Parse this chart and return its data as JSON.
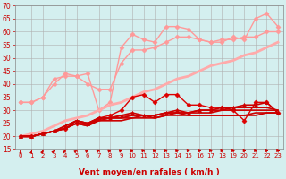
{
  "xlabel": "Vent moyen/en rafales ( km/h )",
  "bg_color": "#d4efef",
  "grid_color": "#b0b0b0",
  "xlim": [
    -0.5,
    23.5
  ],
  "ylim": [
    15,
    70
  ],
  "yticks": [
    15,
    20,
    25,
    30,
    35,
    40,
    45,
    50,
    55,
    60,
    65,
    70
  ],
  "xticks": [
    0,
    1,
    2,
    3,
    4,
    5,
    6,
    7,
    8,
    9,
    10,
    11,
    12,
    13,
    14,
    15,
    16,
    17,
    18,
    19,
    20,
    21,
    22,
    23
  ],
  "lines": [
    {
      "x": [
        0,
        1,
        2,
        3,
        4,
        5,
        6,
        7,
        8,
        9,
        10,
        11,
        12,
        13,
        14,
        15,
        16,
        17,
        18,
        19,
        20,
        21,
        22,
        23
      ],
      "y": [
        33,
        33,
        35,
        40,
        44,
        43,
        44,
        30,
        33,
        54,
        59,
        57,
        56,
        62,
        62,
        61,
        57,
        56,
        56,
        58,
        57,
        65,
        67,
        62
      ],
      "color": "#ff9999",
      "marker": "D",
      "ms": 2.5,
      "lw": 1.0
    },
    {
      "x": [
        0,
        1,
        2,
        3,
        4,
        5,
        6,
        7,
        8,
        9,
        10,
        11,
        12,
        13,
        14,
        15,
        16,
        17,
        18,
        19,
        20,
        21,
        22,
        23
      ],
      "y": [
        33,
        33,
        35,
        42,
        43,
        43,
        40,
        38,
        38,
        48,
        53,
        53,
        54,
        56,
        58,
        58,
        57,
        56,
        57,
        57,
        58,
        58,
        60,
        60
      ],
      "color": "#ff9999",
      "marker": "D",
      "ms": 2.5,
      "lw": 1.0
    },
    {
      "x": [
        0,
        1,
        2,
        3,
        4,
        5,
        6,
        7,
        8,
        9,
        10,
        11,
        12,
        13,
        14,
        15,
        16,
        17,
        18,
        19,
        20,
        21,
        22,
        23
      ],
      "y": [
        20,
        21,
        22,
        24,
        26,
        27,
        28,
        30,
        32,
        33,
        35,
        37,
        38,
        40,
        42,
        43,
        45,
        47,
        48,
        49,
        51,
        52,
        54,
        56
      ],
      "color": "#ffaaaa",
      "marker": null,
      "ms": 0,
      "lw": 2.0
    },
    {
      "x": [
        0,
        1,
        2,
        3,
        4,
        5,
        6,
        7,
        8,
        9,
        10,
        11,
        12,
        13,
        14,
        15,
        16,
        17,
        18,
        19,
        20,
        21,
        22,
        23
      ],
      "y": [
        20,
        20,
        21,
        22,
        23,
        25,
        25,
        27,
        28,
        30,
        35,
        36,
        33,
        36,
        36,
        32,
        32,
        31,
        31,
        30,
        26,
        33,
        33,
        29
      ],
      "color": "#dd0000",
      "marker": "D",
      "ms": 2.5,
      "lw": 1.0
    },
    {
      "x": [
        0,
        1,
        2,
        3,
        4,
        5,
        6,
        7,
        8,
        9,
        10,
        11,
        12,
        13,
        14,
        15,
        16,
        17,
        18,
        19,
        20,
        21,
        22,
        23
      ],
      "y": [
        20,
        20,
        21,
        22,
        23,
        25,
        24,
        27,
        27,
        27,
        27,
        28,
        27,
        28,
        29,
        28,
        28,
        28,
        28,
        28,
        28,
        28,
        29,
        29
      ],
      "color": "#cc0000",
      "marker": null,
      "ms": 0,
      "lw": 1.2
    },
    {
      "x": [
        0,
        1,
        2,
        3,
        4,
        5,
        6,
        7,
        8,
        9,
        10,
        11,
        12,
        13,
        14,
        15,
        16,
        17,
        18,
        19,
        20,
        21,
        22,
        23
      ],
      "y": [
        20,
        20,
        21,
        22,
        23,
        25,
        24,
        26,
        26,
        26,
        27,
        27,
        27,
        28,
        28,
        28,
        28,
        28,
        28,
        28,
        28,
        29,
        29,
        29
      ],
      "color": "#cc0000",
      "marker": null,
      "ms": 0,
      "lw": 1.2
    },
    {
      "x": [
        0,
        1,
        2,
        3,
        4,
        5,
        6,
        7,
        8,
        9,
        10,
        11,
        12,
        13,
        14,
        15,
        16,
        17,
        18,
        19,
        20,
        21,
        22,
        23
      ],
      "y": [
        20,
        20,
        21,
        22,
        23,
        26,
        25,
        26,
        27,
        27,
        28,
        28,
        28,
        29,
        29,
        29,
        29,
        29,
        30,
        30,
        30,
        30,
        30,
        30
      ],
      "color": "#cc0000",
      "marker": null,
      "ms": 0,
      "lw": 1.2
    },
    {
      "x": [
        0,
        1,
        2,
        3,
        4,
        5,
        6,
        7,
        8,
        9,
        10,
        11,
        12,
        13,
        14,
        15,
        16,
        17,
        18,
        19,
        20,
        21,
        22,
        23
      ],
      "y": [
        20,
        20,
        21,
        22,
        24,
        26,
        25,
        27,
        27,
        28,
        28,
        28,
        28,
        29,
        29,
        29,
        30,
        30,
        30,
        31,
        31,
        31,
        31,
        30
      ],
      "color": "#cc0000",
      "marker": null,
      "ms": 0,
      "lw": 1.2
    },
    {
      "x": [
        0,
        1,
        2,
        3,
        4,
        5,
        6,
        7,
        8,
        9,
        10,
        11,
        12,
        13,
        14,
        15,
        16,
        17,
        18,
        19,
        20,
        21,
        22,
        23
      ],
      "y": [
        20,
        20,
        21,
        22,
        24,
        26,
        25,
        27,
        27,
        28,
        29,
        28,
        28,
        29,
        30,
        29,
        30,
        30,
        31,
        31,
        32,
        32,
        33,
        29
      ],
      "color": "#cc0000",
      "marker": "^",
      "ms": 3,
      "lw": 1.2
    }
  ]
}
